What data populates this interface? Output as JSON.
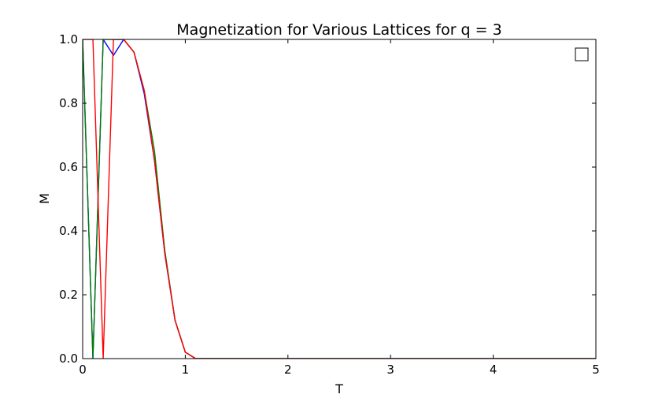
{
  "chart_data": {
    "type": "line",
    "title": "Magnetization for Various Lattices for q = 3",
    "xlabel": "T",
    "ylabel": "M",
    "xlim": [
      0,
      5
    ],
    "ylim": [
      0,
      1.0
    ],
    "xticks": [
      "0",
      "1",
      "2",
      "3",
      "4",
      "5"
    ],
    "yticks": [
      "0.0",
      "0.2",
      "0.4",
      "0.6",
      "0.8",
      "1.0"
    ],
    "grid": false,
    "legend": {
      "placement": "top-right",
      "entries": []
    },
    "x": [
      0.0,
      0.1,
      0.2,
      0.3,
      0.4,
      0.5,
      0.6,
      0.7,
      0.8,
      0.9,
      1.0,
      1.1,
      1.2,
      1.3,
      1.4,
      1.5,
      1.6,
      1.7,
      1.8,
      1.9,
      2.0,
      2.1,
      2.2,
      2.3,
      2.4,
      2.5,
      2.6,
      2.7,
      2.8,
      2.9,
      3.0,
      3.1,
      3.2,
      3.3,
      3.4,
      3.5,
      3.6,
      3.7,
      3.8,
      3.9,
      4.0,
      4.1,
      4.2,
      4.3,
      4.4,
      4.5,
      4.6,
      4.7,
      4.8,
      4.9,
      5.0
    ],
    "series": [
      {
        "color": "#0000ff",
        "values": [
          1.0,
          0.0,
          1.0,
          0.95,
          1.0,
          0.96,
          0.83,
          0.62,
          0.33,
          0.12,
          0.02,
          0.0,
          0.0,
          0.0,
          0.0,
          0.0,
          0.0,
          0.0,
          0.0,
          0.0,
          0.0,
          0.0,
          0.0,
          0.0,
          0.0,
          0.0,
          0.0,
          0.0,
          0.0,
          0.0,
          0.0,
          0.0,
          0.0,
          0.0,
          0.0,
          0.0,
          0.0,
          0.0,
          0.0,
          0.0,
          0.0,
          0.0,
          0.0,
          0.0,
          0.0,
          0.0,
          0.0,
          0.0,
          0.0,
          0.0,
          0.0
        ]
      },
      {
        "color": "#007f00",
        "values": [
          1.0,
          0.0,
          1.0,
          1.0,
          1.0,
          0.96,
          0.84,
          0.65,
          0.34,
          0.12,
          0.02,
          0.0,
          0.0,
          0.0,
          0.0,
          0.0,
          0.0,
          0.0,
          0.0,
          0.0,
          0.0,
          0.0,
          0.0,
          0.0,
          0.0,
          0.0,
          0.0,
          0.0,
          0.0,
          0.0,
          0.0,
          0.0,
          0.0,
          0.0,
          0.0,
          0.0,
          0.0,
          0.0,
          0.0,
          0.0,
          0.0,
          0.0,
          0.0,
          0.0,
          0.0,
          0.0,
          0.0,
          0.0,
          0.0,
          0.0,
          0.0
        ]
      },
      {
        "color": "#ff0000",
        "values": [
          1.0,
          1.0,
          0.0,
          1.0,
          1.0,
          0.96,
          0.84,
          0.62,
          0.33,
          0.12,
          0.02,
          0.0,
          0.0,
          0.0,
          0.0,
          0.0,
          0.0,
          0.0,
          0.0,
          0.0,
          0.0,
          0.0,
          0.0,
          0.0,
          0.0,
          0.0,
          0.0,
          0.0,
          0.0,
          0.0,
          0.0,
          0.0,
          0.0,
          0.0,
          0.0,
          0.0,
          0.0,
          0.0,
          0.0,
          0.0,
          0.0,
          0.0,
          0.0,
          0.0,
          0.0,
          0.0,
          0.0,
          0.0,
          0.0,
          0.0,
          0.0
        ]
      }
    ]
  }
}
